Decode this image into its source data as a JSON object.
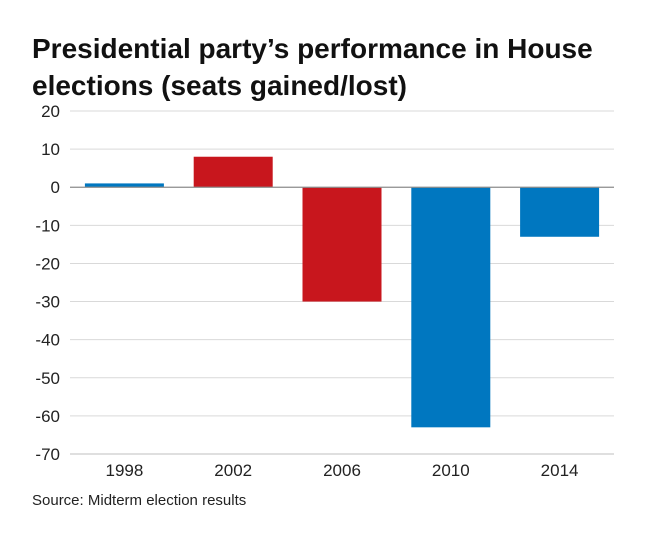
{
  "chart_data": {
    "type": "bar",
    "title": "Presidential party’s performance in House elections (seats gained/lost)",
    "categories": [
      "1998",
      "2002",
      "2006",
      "2010",
      "2014"
    ],
    "values": [
      1,
      8,
      -30,
      -63,
      -13
    ],
    "bar_colors": [
      "#0077c0",
      "#c8161d",
      "#c8161d",
      "#0077c0",
      "#0077c0"
    ],
    "xlabel": "",
    "ylabel": "",
    "ylim": [
      -70,
      20
    ],
    "yticks": [
      "20",
      "10",
      "0",
      "-10",
      "-20",
      "-30",
      "-40",
      "-50",
      "-60",
      "-70"
    ],
    "grid": true,
    "source": "Source: Midterm election results"
  }
}
